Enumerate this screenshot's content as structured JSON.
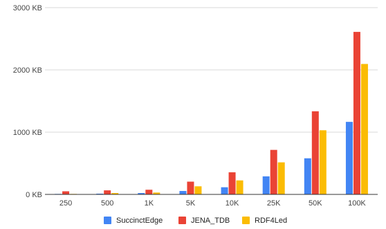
{
  "chart_data": {
    "type": "bar",
    "title": "",
    "xlabel": "",
    "ylabel": "",
    "categories": [
      "250",
      "500",
      "1K",
      "5K",
      "10K",
      "25K",
      "50K",
      "100K"
    ],
    "series": [
      {
        "name": "SuccinctEdge",
        "color": "#4285f4",
        "values": [
          8,
          12,
          22,
          55,
          115,
          290,
          580,
          1165
        ]
      },
      {
        "name": "JENA_TDB",
        "color": "#ea4335",
        "values": [
          50,
          65,
          75,
          205,
          355,
          715,
          1335,
          2610
        ]
      },
      {
        "name": "RDF4Led",
        "color": "#fbbc04",
        "values": [
          8,
          22,
          30,
          130,
          225,
          515,
          1030,
          2095
        ]
      }
    ],
    "ylim": [
      0,
      3000
    ],
    "yticks": [
      0,
      1000,
      2000,
      3000
    ],
    "ytick_labels": [
      "0 KB",
      "1000 KB",
      "2000 KB",
      "3000 KB"
    ],
    "grid": true,
    "legend_position": "bottom"
  }
}
